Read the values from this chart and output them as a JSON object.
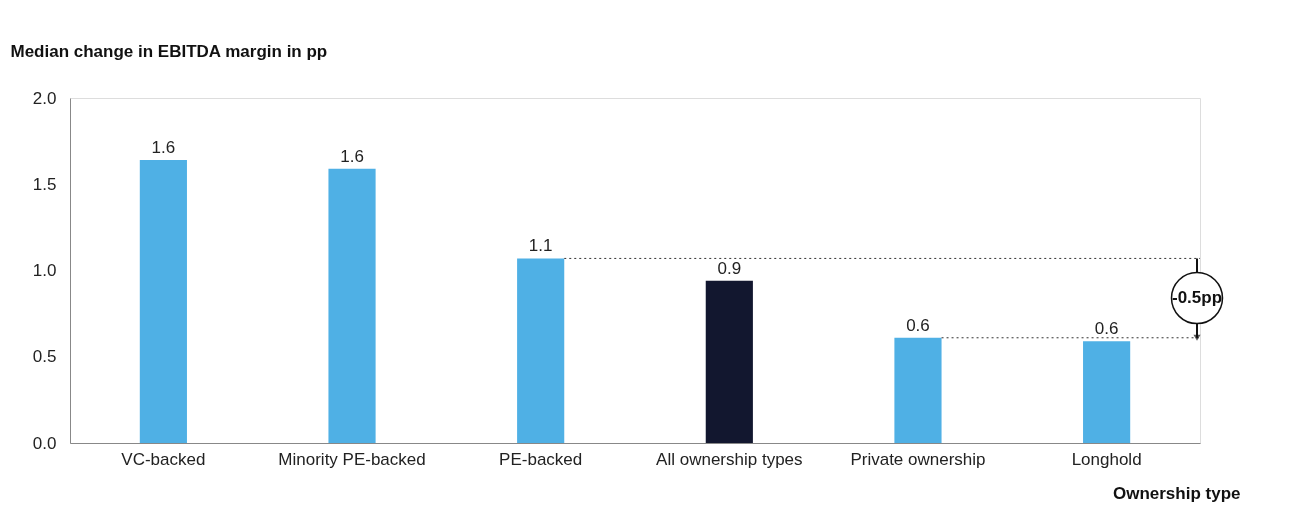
{
  "chart_data": {
    "type": "bar",
    "ylabel": "Median change in EBITDA margin in pp",
    "xlabel": "Ownership type",
    "categories": [
      "VC-backed",
      "Minority PE-backed",
      "PE-backed",
      "All ownership types",
      "Private ownership",
      "Longhold"
    ],
    "values": [
      1.64,
      1.59,
      1.07,
      0.94,
      0.61,
      0.59
    ],
    "colors": [
      "#4fb0e5",
      "#4fb0e5",
      "#4fb0e5",
      "#12172f",
      "#4fb0e5",
      "#4fb0e5"
    ],
    "value_labels": [
      "1.6",
      "1.6",
      "1.1",
      "0.9",
      "0.6",
      "0.6"
    ],
    "ylim": [
      0,
      2
    ],
    "yticks": [
      {
        "value": 0,
        "label": "0.0"
      },
      {
        "value": 0.5,
        "label": "0.5"
      },
      {
        "value": 1,
        "label": "1.0"
      },
      {
        "value": 1.5,
        "label": "1.5"
      },
      {
        "value": 2,
        "label": "2.0"
      }
    ],
    "ref_lines": [
      {
        "axis": "y",
        "value": 1.07,
        "line_style": "dotted",
        "color": "#333333"
      },
      {
        "axis": "y",
        "value": 0.61,
        "line_style": "dotted",
        "color": "#333333"
      }
    ],
    "annotations": [
      "-0.5pp"
    ],
    "grid": false
  }
}
